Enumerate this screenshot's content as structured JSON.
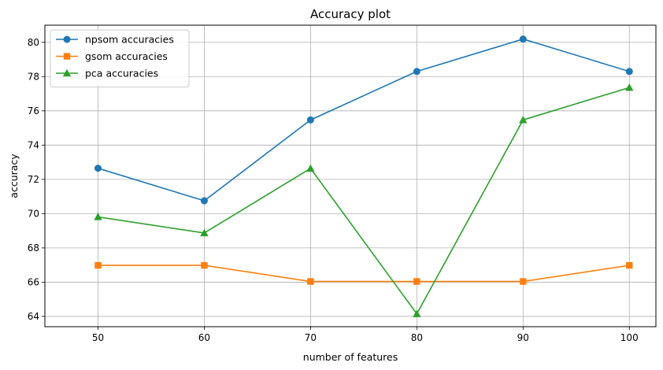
{
  "chart_data": {
    "type": "line",
    "title": "Accuracy plot",
    "xlabel": "number of features",
    "ylabel": "accuracy",
    "x": [
      50,
      60,
      70,
      80,
      90,
      100
    ],
    "xticks": [
      50,
      60,
      70,
      80,
      90,
      100
    ],
    "yticks": [
      64,
      66,
      68,
      70,
      72,
      74,
      76,
      78,
      80
    ],
    "xlim": [
      45,
      102.5
    ],
    "ylim": [
      63.4,
      81.0
    ],
    "grid": true,
    "legend_position": "top-left",
    "series": [
      {
        "name": "npsom accuracies",
        "color": "#1f77b4",
        "marker": "circle",
        "values": [
          72.65,
          70.75,
          75.47,
          78.3,
          80.19,
          78.3
        ]
      },
      {
        "name": "gsom accuracies",
        "color": "#ff7f0e",
        "marker": "square",
        "values": [
          66.98,
          66.98,
          66.04,
          66.04,
          66.04,
          66.98
        ]
      },
      {
        "name": "pca accuracies",
        "color": "#2ca02c",
        "marker": "triangle",
        "values": [
          69.81,
          68.87,
          72.64,
          64.15,
          75.47,
          77.36
        ]
      }
    ]
  }
}
